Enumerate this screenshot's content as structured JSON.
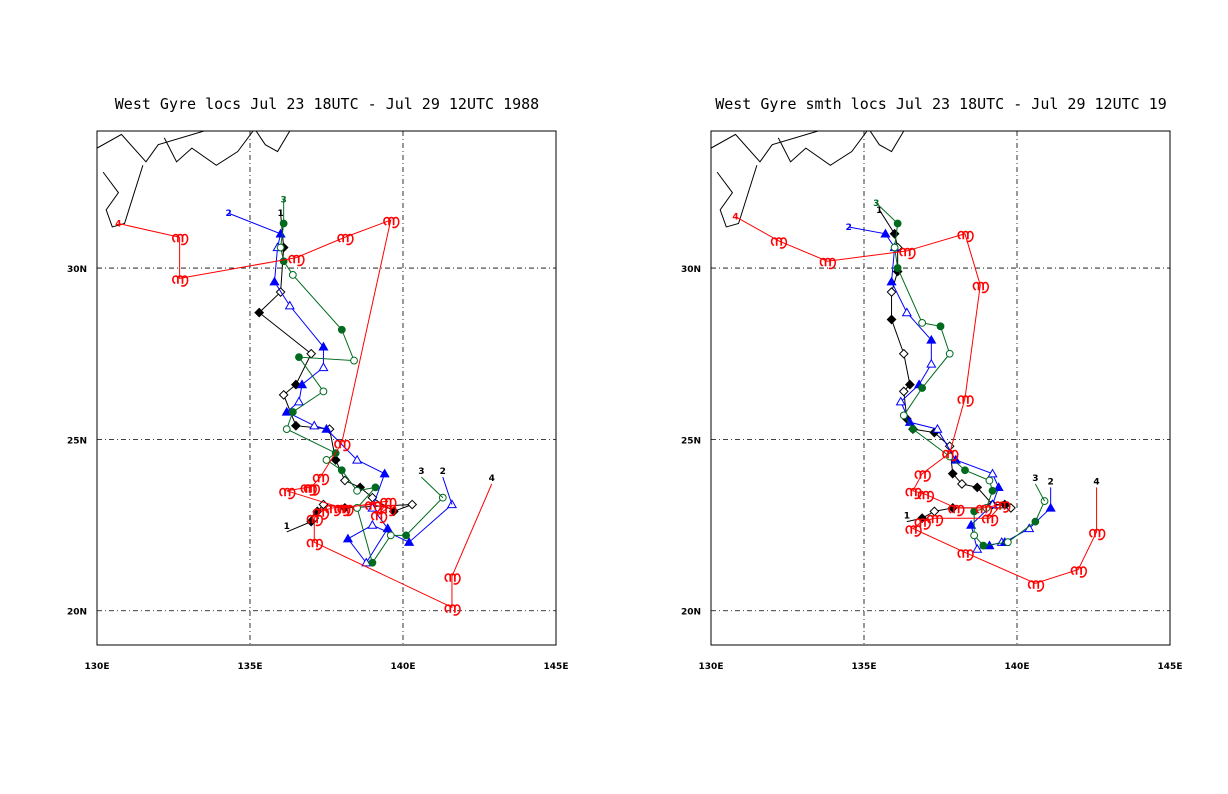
{
  "colors": {
    "track1": "#000000",
    "track2": "#0000ff",
    "track3": "#006b1f",
    "track4": "#ff0000",
    "grid": "#000000",
    "coast": "#000000"
  },
  "chart_data": [
    {
      "type": "line",
      "title": "West Gyre locs Jul 23 18UTC - Jul 29 12UTC 1988",
      "xlim": [
        130,
        145
      ],
      "ylim": [
        19,
        34
      ],
      "grid": true,
      "x_ticks": [
        130,
        135,
        140,
        145
      ],
      "x_tick_labels": [
        "130E",
        "135E",
        "140E",
        "145E"
      ],
      "y_ticks": [
        20,
        25,
        30
      ],
      "y_tick_labels": [
        "20N",
        "25N",
        "30N"
      ],
      "coastline": [
        [
          [
            130.0,
            33.5
          ],
          [
            130.8,
            33.9
          ],
          [
            131.6,
            33.1
          ],
          [
            132.0,
            33.6
          ],
          [
            133.5,
            34.0
          ]
        ],
        [
          [
            130.2,
            32.8
          ],
          [
            130.7,
            32.2
          ],
          [
            130.3,
            31.7
          ],
          [
            130.5,
            31.2
          ],
          [
            130.9,
            31.3
          ],
          [
            131.5,
            33.0
          ]
        ],
        [
          [
            132.2,
            33.8
          ],
          [
            132.6,
            33.1
          ],
          [
            133.1,
            33.5
          ],
          [
            133.9,
            33.0
          ],
          [
            134.6,
            33.4
          ],
          [
            135.1,
            34.0
          ]
        ],
        [
          [
            135.2,
            34.0
          ],
          [
            135.5,
            33.6
          ],
          [
            135.9,
            33.4
          ],
          [
            136.3,
            34.0
          ]
        ]
      ],
      "series": [
        {
          "name": "1",
          "start": [
            136.0,
            31.6
          ],
          "points": [
            [
              136.1,
              30.6
            ],
            [
              136.0,
              29.3
            ],
            [
              135.3,
              28.7
            ],
            [
              137.0,
              27.5
            ],
            [
              136.5,
              26.6
            ],
            [
              136.1,
              26.3
            ],
            [
              136.5,
              25.4
            ],
            [
              137.6,
              25.3
            ],
            [
              137.8,
              24.4
            ],
            [
              138.1,
              23.8
            ],
            [
              138.6,
              23.6
            ],
            [
              139.0,
              23.3
            ],
            [
              139.7,
              22.9
            ],
            [
              140.3,
              23.1
            ],
            [
              138.1,
              23.0
            ],
            [
              137.4,
              23.1
            ],
            [
              137.2,
              22.9
            ],
            [
              137.1,
              22.7
            ],
            [
              137.0,
              22.6
            ]
          ],
          "end": [
            136.2,
            22.3
          ]
        },
        {
          "name": "2",
          "start": [
            134.3,
            31.6
          ],
          "points": [
            [
              136.0,
              31.0
            ],
            [
              135.9,
              30.6
            ],
            [
              135.8,
              29.6
            ],
            [
              136.3,
              28.9
            ],
            [
              137.4,
              27.7
            ],
            [
              137.4,
              27.1
            ],
            [
              136.7,
              26.6
            ],
            [
              136.6,
              26.1
            ],
            [
              136.2,
              25.8
            ],
            [
              137.1,
              25.4
            ],
            [
              137.5,
              25.3
            ],
            [
              138.5,
              24.4
            ],
            [
              139.4,
              24.0
            ],
            [
              139.0,
              23.0
            ],
            [
              139.5,
              22.4
            ],
            [
              138.8,
              21.4
            ],
            [
              138.2,
              22.1
            ],
            [
              139.0,
              22.5
            ],
            [
              140.2,
              22.0
            ],
            [
              141.6,
              23.1
            ]
          ],
          "end": [
            141.3,
            23.9
          ]
        },
        {
          "name": "3",
          "start": [
            136.1,
            32.0
          ],
          "points": [
            [
              136.1,
              31.3
            ],
            [
              136.0,
              30.6
            ],
            [
              136.1,
              30.2
            ],
            [
              136.4,
              29.8
            ],
            [
              138.0,
              28.2
            ],
            [
              138.4,
              27.3
            ],
            [
              136.6,
              27.4
            ],
            [
              137.4,
              26.4
            ],
            [
              136.4,
              25.8
            ],
            [
              136.2,
              25.3
            ],
            [
              137.8,
              24.6
            ],
            [
              137.5,
              24.4
            ],
            [
              138.0,
              24.1
            ],
            [
              138.5,
              23.5
            ],
            [
              139.1,
              23.6
            ],
            [
              138.5,
              23.0
            ],
            [
              139.0,
              21.4
            ],
            [
              139.6,
              22.2
            ],
            [
              140.1,
              22.2
            ],
            [
              141.3,
              23.3
            ]
          ],
          "end": [
            140.6,
            23.9
          ]
        },
        {
          "name": "4",
          "start": [
            130.7,
            31.3
          ],
          "points": [
            [
              132.7,
              30.9
            ],
            [
              132.7,
              29.7
            ],
            [
              136.5,
              30.3
            ],
            [
              138.1,
              30.9
            ],
            [
              139.6,
              31.4
            ],
            [
              138.0,
              24.9
            ],
            [
              137.3,
              23.9
            ],
            [
              137.0,
              23.6
            ],
            [
              136.9,
              23.6
            ],
            [
              136.2,
              23.5
            ],
            [
              138.0,
              23.0
            ],
            [
              138.1,
              23.0
            ],
            [
              139.5,
              23.2
            ],
            [
              139.2,
              22.8
            ],
            [
              139.5,
              23.0
            ],
            [
              139.0,
              23.1
            ],
            [
              137.7,
              23.0
            ],
            [
              137.3,
              22.9
            ],
            [
              137.1,
              22.7
            ],
            [
              137.1,
              22.0
            ],
            [
              141.6,
              20.1
            ],
            [
              141.6,
              21.0
            ]
          ],
          "end": [
            142.9,
            23.7
          ]
        }
      ]
    },
    {
      "type": "line",
      "title": "West Gyre smth locs Jul 23 18UTC - Jul 29 12UTC 19",
      "xlim": [
        130,
        145
      ],
      "ylim": [
        19,
        34
      ],
      "grid": true,
      "x_ticks": [
        130,
        135,
        140,
        145
      ],
      "x_tick_labels": [
        "130E",
        "135E",
        "140E",
        "145E"
      ],
      "y_ticks": [
        20,
        25,
        30
      ],
      "y_tick_labels": [
        "20N",
        "25N",
        "30N"
      ],
      "coastline": [
        [
          [
            130.0,
            33.5
          ],
          [
            130.8,
            33.9
          ],
          [
            131.6,
            33.1
          ],
          [
            132.0,
            33.6
          ],
          [
            133.5,
            34.0
          ]
        ],
        [
          [
            130.2,
            32.8
          ],
          [
            130.7,
            32.2
          ],
          [
            130.3,
            31.7
          ],
          [
            130.5,
            31.2
          ],
          [
            130.9,
            31.3
          ],
          [
            131.5,
            33.0
          ]
        ],
        [
          [
            132.2,
            33.8
          ],
          [
            132.6,
            33.1
          ],
          [
            133.1,
            33.5
          ],
          [
            133.9,
            33.0
          ],
          [
            134.6,
            33.4
          ],
          [
            135.1,
            34.0
          ]
        ],
        [
          [
            135.2,
            34.0
          ],
          [
            135.5,
            33.6
          ],
          [
            135.9,
            33.4
          ],
          [
            136.3,
            34.0
          ]
        ]
      ],
      "series": [
        {
          "name": "1",
          "start": [
            135.5,
            31.7
          ],
          "points": [
            [
              136.0,
              31.0
            ],
            [
              136.1,
              30.6
            ],
            [
              136.1,
              29.9
            ],
            [
              135.9,
              29.3
            ],
            [
              135.9,
              28.5
            ],
            [
              136.3,
              27.5
            ],
            [
              136.5,
              26.6
            ],
            [
              136.3,
              26.4
            ],
            [
              136.4,
              25.6
            ],
            [
              136.6,
              25.3
            ],
            [
              137.3,
              25.2
            ],
            [
              137.8,
              24.8
            ],
            [
              137.9,
              24.0
            ],
            [
              138.2,
              23.7
            ],
            [
              138.7,
              23.6
            ],
            [
              139.2,
              23.1
            ],
            [
              139.6,
              23.1
            ],
            [
              139.8,
              23.0
            ],
            [
              137.9,
              23.0
            ],
            [
              137.3,
              22.9
            ],
            [
              136.9,
              22.7
            ]
          ],
          "end": [
            136.4,
            22.6
          ]
        },
        {
          "name": "2",
          "start": [
            134.5,
            31.2
          ],
          "points": [
            [
              135.7,
              31.0
            ],
            [
              136.0,
              30.6
            ],
            [
              135.9,
              29.6
            ],
            [
              136.4,
              28.7
            ],
            [
              137.2,
              27.9
            ],
            [
              137.2,
              27.2
            ],
            [
              136.8,
              26.6
            ],
            [
              136.2,
              26.1
            ],
            [
              136.5,
              25.5
            ],
            [
              137.4,
              25.3
            ],
            [
              138.0,
              24.4
            ],
            [
              139.2,
              24.0
            ],
            [
              139.4,
              23.6
            ],
            [
              139.2,
              23.1
            ],
            [
              138.5,
              22.5
            ],
            [
              138.7,
              21.8
            ],
            [
              139.1,
              21.9
            ],
            [
              139.5,
              22.0
            ],
            [
              139.6,
              22.0
            ],
            [
              140.4,
              22.4
            ],
            [
              141.1,
              23.0
            ]
          ],
          "end": [
            141.1,
            23.6
          ]
        },
        {
          "name": "3",
          "start": [
            135.4,
            31.9
          ],
          "points": [
            [
              136.1,
              31.3
            ],
            [
              136.0,
              30.6
            ],
            [
              136.1,
              30.0
            ],
            [
              136.9,
              28.4
            ],
            [
              137.5,
              28.3
            ],
            [
              137.8,
              27.5
            ],
            [
              136.9,
              26.5
            ],
            [
              136.3,
              25.7
            ],
            [
              136.6,
              25.3
            ],
            [
              137.8,
              24.5
            ],
            [
              138.3,
              24.1
            ],
            [
              139.1,
              23.8
            ],
            [
              139.2,
              23.5
            ],
            [
              139.0,
              23.0
            ],
            [
              138.6,
              22.9
            ],
            [
              138.6,
              22.2
            ],
            [
              138.9,
              21.9
            ],
            [
              139.7,
              22.0
            ],
            [
              140.6,
              22.6
            ],
            [
              140.9,
              23.2
            ]
          ],
          "end": [
            140.6,
            23.7
          ]
        },
        {
          "name": "4",
          "start": [
            130.8,
            31.5
          ],
          "points": [
            [
              132.2,
              30.8
            ],
            [
              133.8,
              30.2
            ],
            [
              136.4,
              30.5
            ],
            [
              138.3,
              31.0
            ],
            [
              138.8,
              29.5
            ],
            [
              138.3,
              26.2
            ],
            [
              137.8,
              24.6
            ],
            [
              136.9,
              24.0
            ],
            [
              136.6,
              23.5
            ],
            [
              137.0,
              23.4
            ],
            [
              138.0,
              23.0
            ],
            [
              138.9,
              23.0
            ],
            [
              139.5,
              23.1
            ],
            [
              139.1,
              22.7
            ],
            [
              137.3,
              22.7
            ],
            [
              136.9,
              22.6
            ],
            [
              136.6,
              22.4
            ],
            [
              138.3,
              21.7
            ],
            [
              140.6,
              20.8
            ],
            [
              142.0,
              21.2
            ],
            [
              142.6,
              22.3
            ]
          ],
          "end": [
            142.6,
            23.6
          ]
        }
      ]
    }
  ]
}
